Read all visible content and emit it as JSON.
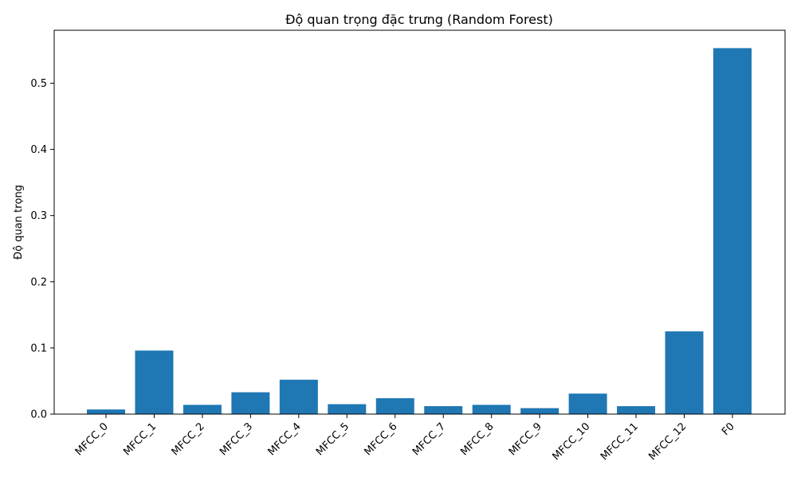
{
  "chart_data": {
    "type": "bar",
    "title": "Độ quan trọng đặc trưng (Random Forest)",
    "xlabel": "",
    "ylabel": "Độ quan trọng",
    "categories": [
      "MFCC_0",
      "MFCC_1",
      "MFCC_2",
      "MFCC_3",
      "MFCC_4",
      "MFCC_5",
      "MFCC_6",
      "MFCC_7",
      "MFCC_8",
      "MFCC_9",
      "MFCC_10",
      "MFCC_11",
      "MFCC_12",
      "F0"
    ],
    "values": [
      0.007,
      0.096,
      0.014,
      0.033,
      0.052,
      0.015,
      0.024,
      0.012,
      0.014,
      0.009,
      0.031,
      0.012,
      0.125,
      0.553
    ],
    "ylim": [
      0,
      0.58
    ],
    "yticks": [
      0.0,
      0.1,
      0.2,
      0.3,
      0.4,
      0.5
    ],
    "ytick_labels": [
      "0.0",
      "0.1",
      "0.2",
      "0.3",
      "0.4",
      "0.5"
    ],
    "bar_color": "#1f77b4",
    "grid": false,
    "legend": "none"
  }
}
